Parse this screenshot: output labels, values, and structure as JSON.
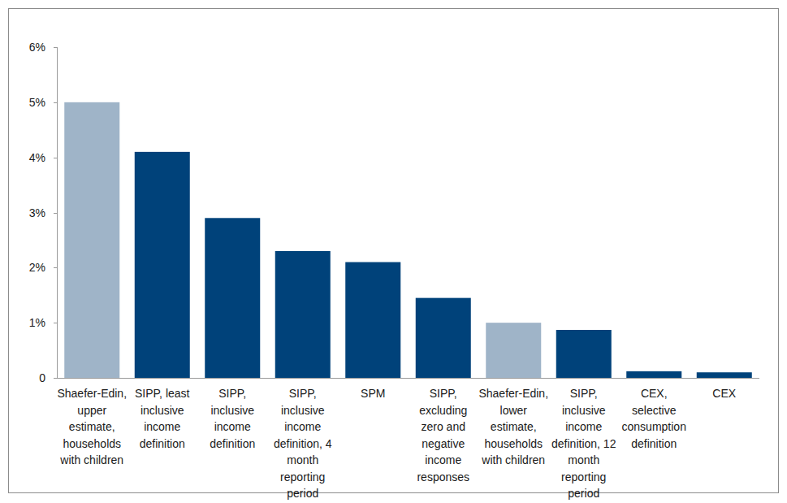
{
  "chart_data": {
    "type": "bar",
    "categories": [
      "Shaefer-Edin, upper estimate, households with children",
      "SIPP, least inclusive income definition",
      "SIPP, inclusive income definition",
      "SIPP, inclusive income definition, 4 month reporting period",
      "SPM",
      "SIPP, excluding zero and negative income responses",
      "Shaefer-Edin, lower estimate, households with children",
      "SIPP, inclusive income definition, 12 month reporting period",
      "CEX, selective consumption definition",
      "CEX"
    ],
    "values": [
      5.0,
      4.1,
      2.9,
      2.3,
      2.1,
      1.45,
      1.0,
      0.87,
      0.12,
      0.1
    ],
    "colors": [
      "#9fb4c8",
      "#00427a",
      "#00427a",
      "#00427a",
      "#00427a",
      "#00427a",
      "#9fb4c8",
      "#00427a",
      "#00427a",
      "#00427a"
    ],
    "ylim": [
      0,
      6
    ],
    "yticks": [
      0,
      {
        "value": 1,
        "label": "1%"
      },
      {
        "value": 2,
        "label": "2%"
      },
      {
        "value": 3,
        "label": "3%"
      },
      {
        "value": 4,
        "label": "4%"
      },
      {
        "value": 5,
        "label": "5%"
      },
      {
        "value": 6,
        "label": "6%"
      }
    ],
    "grid": false
  }
}
